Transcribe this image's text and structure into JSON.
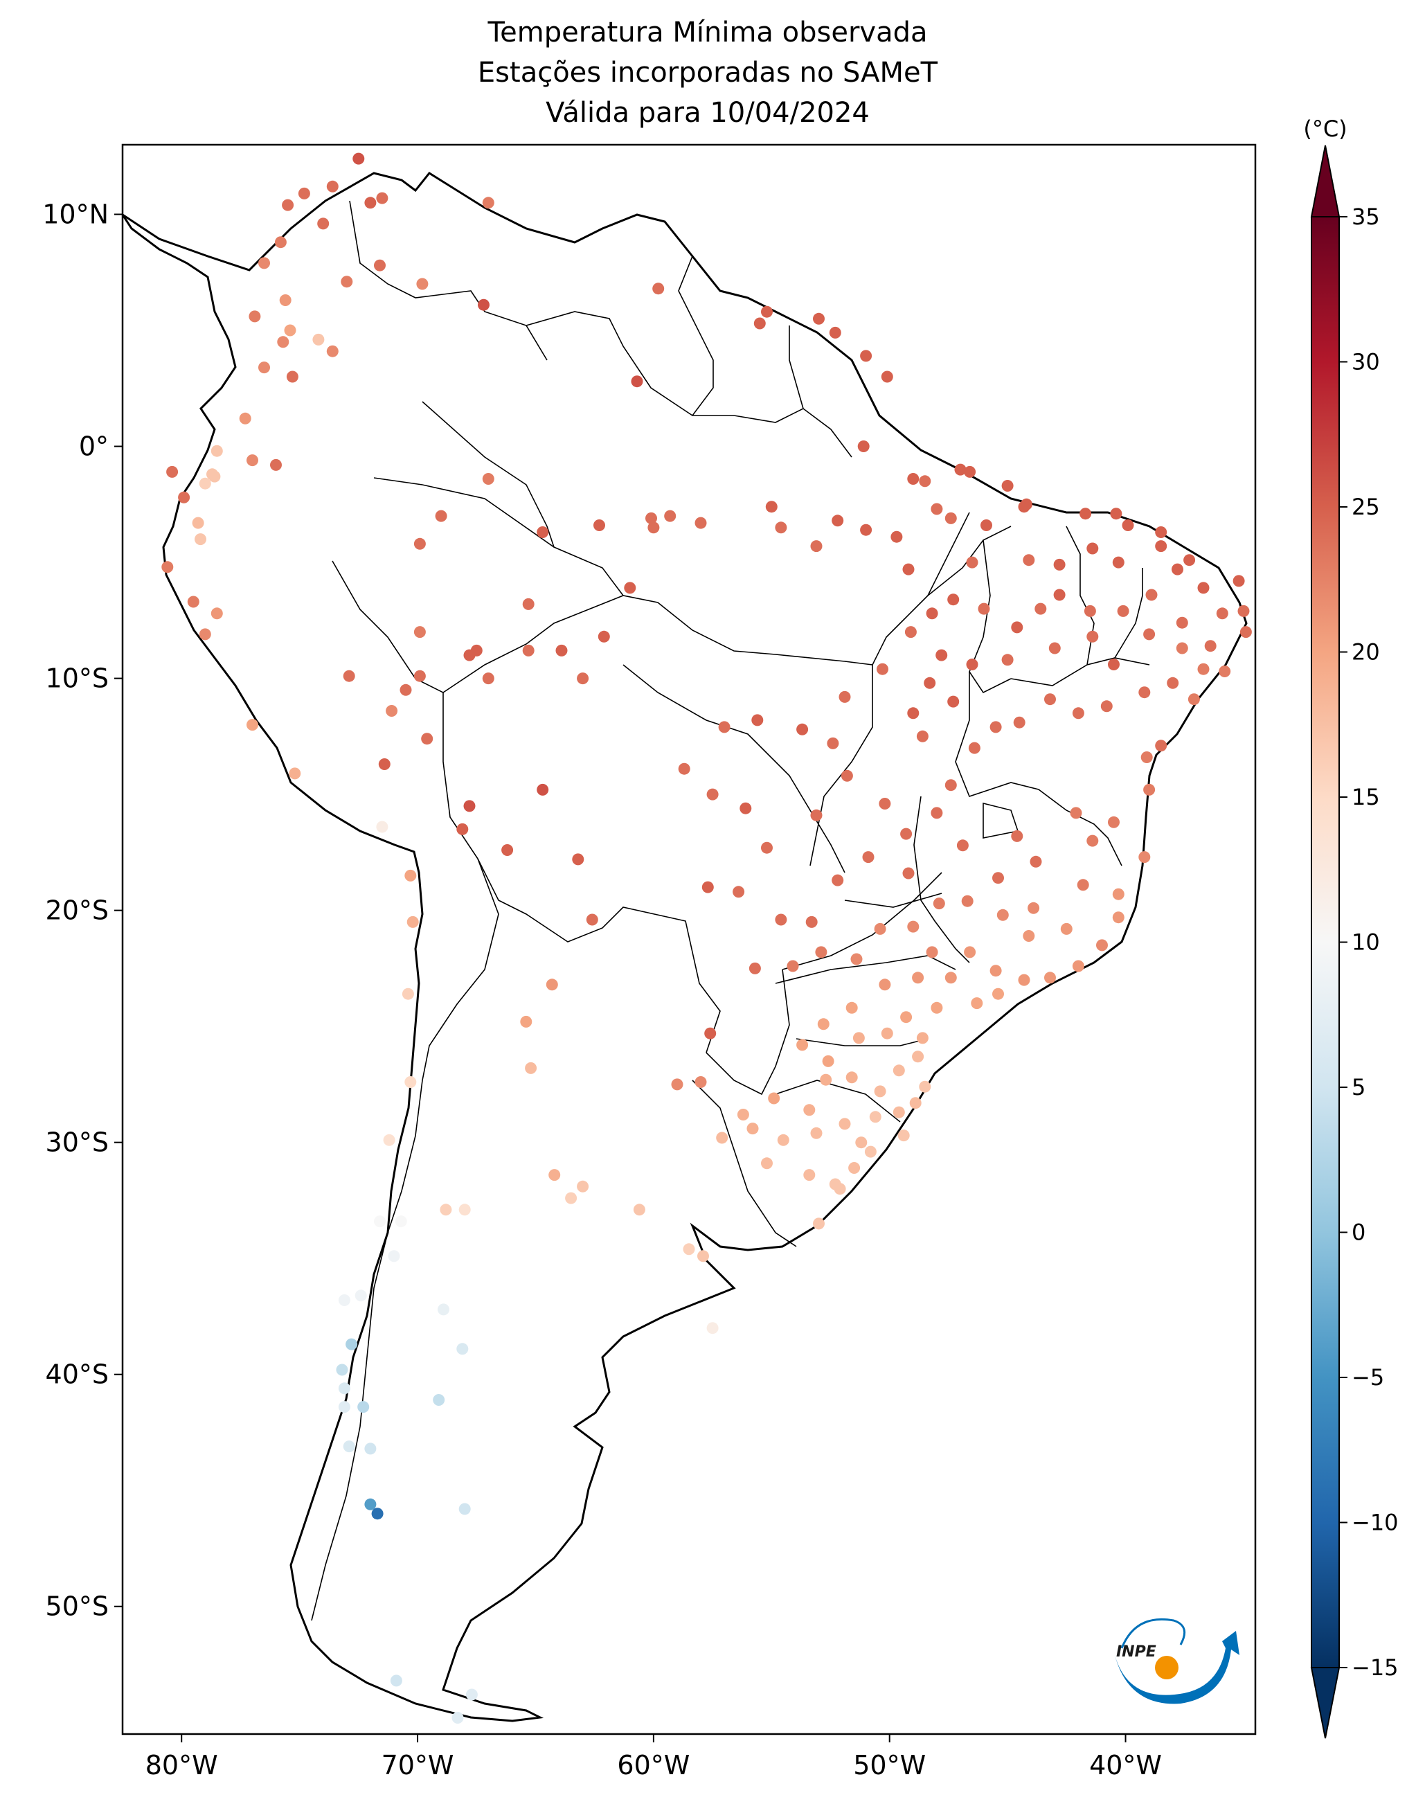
{
  "title": {
    "line1": "Temperatura Mínima observada",
    "line2": "Estações incorporadas no SAMeT",
    "line3": "Válida para 10/04/2024"
  },
  "map": {
    "region": "South America",
    "lon_range": [
      -82.5,
      -34.5
    ],
    "lat_range": [
      -55.5,
      13.0
    ],
    "lon_ticks": [
      {
        "value": -80,
        "label": "80°W"
      },
      {
        "value": -70,
        "label": "70°W"
      },
      {
        "value": -60,
        "label": "60°W"
      },
      {
        "value": -50,
        "label": "50°W"
      },
      {
        "value": -40,
        "label": "40°W"
      }
    ],
    "lat_ticks": [
      {
        "value": 10,
        "label": "10°N"
      },
      {
        "value": 0,
        "label": "0°"
      },
      {
        "value": -10,
        "label": "10°S"
      },
      {
        "value": -20,
        "label": "20°S"
      },
      {
        "value": -30,
        "label": "30°S"
      },
      {
        "value": -40,
        "label": "40°S"
      },
      {
        "value": -50,
        "label": "50°S"
      }
    ]
  },
  "colorbar": {
    "unit": "(°C)",
    "min": -15,
    "max": 35,
    "extend": "both",
    "colormap": "RdBu_r",
    "ticks": [
      {
        "value": 35,
        "label": "35"
      },
      {
        "value": 30,
        "label": "30"
      },
      {
        "value": 25,
        "label": "25"
      },
      {
        "value": 20,
        "label": "20"
      },
      {
        "value": 15,
        "label": "15"
      },
      {
        "value": 10,
        "label": "10"
      },
      {
        "value": 5,
        "label": "5"
      },
      {
        "value": 0,
        "label": "0"
      },
      {
        "value": -5,
        "label": "−5"
      },
      {
        "value": -10,
        "label": "−10"
      },
      {
        "value": -15,
        "label": "−15"
      }
    ]
  },
  "logo": {
    "text": "INPE"
  },
  "chart_data": {
    "type": "scatter",
    "title": "Temperatura Mínima observada / Estações incorporadas no SAMeT / Válida para 10/04/2024",
    "xlabel": "",
    "ylabel": "",
    "color_unit": "(°C)",
    "points": [
      [
        -72.5,
        12.4,
        26
      ],
      [
        -73.6,
        11.2,
        24
      ],
      [
        -74.8,
        10.9,
        24
      ],
      [
        -75.5,
        10.4,
        24
      ],
      [
        -72.0,
        10.5,
        25
      ],
      [
        -71.5,
        10.7,
        24
      ],
      [
        -67.0,
        10.5,
        23
      ],
      [
        -74.0,
        9.6,
        24
      ],
      [
        -75.8,
        8.8,
        23
      ],
      [
        -76.5,
        7.9,
        22
      ],
      [
        -73.0,
        7.1,
        23
      ],
      [
        -71.6,
        7.8,
        24
      ],
      [
        -69.8,
        7.0,
        22
      ],
      [
        -67.2,
        6.1,
        26
      ],
      [
        -75.6,
        6.3,
        21
      ],
      [
        -75.4,
        5.0,
        20
      ],
      [
        -76.9,
        5.6,
        23
      ],
      [
        -74.2,
        4.6,
        17
      ],
      [
        -73.6,
        4.1,
        22
      ],
      [
        -75.7,
        4.5,
        22
      ],
      [
        -75.3,
        3.0,
        24
      ],
      [
        -76.5,
        3.4,
        22
      ],
      [
        -77.3,
        1.2,
        21
      ],
      [
        -59.8,
        6.8,
        24
      ],
      [
        -55.2,
        5.8,
        25
      ],
      [
        -53.0,
        5.5,
        25
      ],
      [
        -52.3,
        4.9,
        25
      ],
      [
        -60.7,
        2.8,
        26
      ],
      [
        -55.5,
        5.3,
        25
      ],
      [
        -51.0,
        3.9,
        25
      ],
      [
        -50.1,
        3.0,
        25
      ],
      [
        -51.1,
        0.0,
        25
      ],
      [
        -49.0,
        -1.4,
        25
      ],
      [
        -48.5,
        -1.5,
        24
      ],
      [
        -47.0,
        -1.0,
        25
      ],
      [
        -45.0,
        -1.7,
        25
      ],
      [
        -44.2,
        -2.5,
        25
      ],
      [
        -44.3,
        -2.6,
        25
      ],
      [
        -41.7,
        -2.9,
        25
      ],
      [
        -40.4,
        -2.9,
        25
      ],
      [
        -39.9,
        -3.4,
        25
      ],
      [
        -38.5,
        -3.7,
        25
      ],
      [
        -37.3,
        -4.9,
        25
      ],
      [
        -35.2,
        -5.8,
        25
      ],
      [
        -35.0,
        -7.1,
        24
      ],
      [
        -34.9,
        -8.0,
        24
      ],
      [
        -35.8,
        -9.7,
        23
      ],
      [
        -37.1,
        -10.9,
        23
      ],
      [
        -38.5,
        -12.9,
        24
      ],
      [
        -39.1,
        -13.4,
        23
      ],
      [
        -39.0,
        -14.8,
        23
      ],
      [
        -39.2,
        -17.7,
        22
      ],
      [
        -40.3,
        -19.3,
        21
      ],
      [
        -40.3,
        -20.3,
        21
      ],
      [
        -41.0,
        -21.5,
        22
      ],
      [
        -43.2,
        -22.9,
        21
      ],
      [
        -44.3,
        -23.0,
        21
      ],
      [
        -45.4,
        -23.6,
        20
      ],
      [
        -46.3,
        -24.0,
        20
      ],
      [
        -48.6,
        -25.5,
        19
      ],
      [
        -48.8,
        -26.3,
        18
      ],
      [
        -48.5,
        -27.6,
        17
      ],
      [
        -49.6,
        -28.7,
        18
      ],
      [
        -51.2,
        -30.0,
        18
      ],
      [
        -52.3,
        -31.8,
        17
      ],
      [
        -53.0,
        -33.5,
        17
      ],
      [
        -78.5,
        -0.2,
        17
      ],
      [
        -79.9,
        -2.2,
        24
      ],
      [
        -80.4,
        -1.1,
        24
      ],
      [
        -78.6,
        -1.3,
        17
      ],
      [
        -79.0,
        -1.6,
        16
      ],
      [
        -78.7,
        -1.2,
        17
      ],
      [
        -77.0,
        -0.6,
        22
      ],
      [
        -76.0,
        -0.8,
        24
      ],
      [
        -79.3,
        -3.3,
        18
      ],
      [
        -79.2,
        -4.0,
        17
      ],
      [
        -80.6,
        -5.2,
        23
      ],
      [
        -79.5,
        -6.7,
        23
      ],
      [
        -78.5,
        -7.2,
        21
      ],
      [
        -79.0,
        -8.1,
        22
      ],
      [
        -77.0,
        -12.0,
        20
      ],
      [
        -75.2,
        -14.1,
        19
      ],
      [
        -71.5,
        -16.4,
        12
      ],
      [
        -70.3,
        -18.5,
        20
      ],
      [
        -70.2,
        -20.5,
        19
      ],
      [
        -70.4,
        -23.6,
        16
      ],
      [
        -70.3,
        -27.4,
        15
      ],
      [
        -71.2,
        -29.9,
        14
      ],
      [
        -71.6,
        -33.4,
        10
      ],
      [
        -70.7,
        -33.4,
        10
      ],
      [
        -71.0,
        -34.9,
        9
      ],
      [
        -72.4,
        -36.6,
        9
      ],
      [
        -73.1,
        -36.8,
        9
      ],
      [
        -72.8,
        -38.7,
        2
      ],
      [
        -73.2,
        -39.8,
        4
      ],
      [
        -73.1,
        -40.6,
        6
      ],
      [
        -73.1,
        -41.4,
        7
      ],
      [
        -72.9,
        -43.1,
        6
      ],
      [
        -72.0,
        -43.2,
        5
      ],
      [
        -72.0,
        -45.6,
        -4
      ],
      [
        -71.7,
        -46.0,
        -9
      ],
      [
        -68.0,
        -45.8,
        5
      ],
      [
        -70.9,
        -53.2,
        5
      ],
      [
        -68.3,
        -54.8,
        7
      ],
      [
        -67.7,
        -53.8,
        7
      ],
      [
        -68.9,
        -37.2,
        8
      ],
      [
        -68.1,
        -38.9,
        6
      ],
      [
        -69.1,
        -41.1,
        4
      ],
      [
        -72.3,
        -41.4,
        3
      ],
      [
        -68.0,
        -32.9,
        14
      ],
      [
        -68.8,
        -32.9,
        16
      ],
      [
        -65.4,
        -24.8,
        20
      ],
      [
        -65.2,
        -26.8,
        18
      ],
      [
        -64.3,
        -23.2,
        21
      ],
      [
        -64.2,
        -31.4,
        19
      ],
      [
        -63.0,
        -31.9,
        17
      ],
      [
        -63.5,
        -32.4,
        16
      ],
      [
        -60.6,
        -32.9,
        17
      ],
      [
        -58.5,
        -34.6,
        16
      ],
      [
        -57.9,
        -34.9,
        17
      ],
      [
        -57.5,
        -38.0,
        12
      ],
      [
        -59.0,
        -27.5,
        22
      ],
      [
        -58.0,
        -27.4,
        22
      ],
      [
        -57.6,
        -25.3,
        25
      ],
      [
        -68.1,
        -16.5,
        25
      ],
      [
        -67.8,
        -15.5,
        26
      ],
      [
        -66.2,
        -17.4,
        25
      ],
      [
        -64.7,
        -14.8,
        26
      ],
      [
        -63.2,
        -17.8,
        25
      ],
      [
        -62.6,
        -20.4,
        24
      ],
      [
        -70.5,
        -10.5,
        24
      ],
      [
        -69.9,
        -9.9,
        24
      ],
      [
        -71.1,
        -11.4,
        22
      ],
      [
        -72.9,
        -9.9,
        24
      ],
      [
        -67.8,
        -9.0,
        25
      ],
      [
        -67.0,
        -10.0,
        24
      ],
      [
        -67.5,
        -8.8,
        25
      ],
      [
        -69.9,
        -8.0,
        23
      ],
      [
        -71.4,
        -13.7,
        25
      ],
      [
        -69.6,
        -12.6,
        24
      ],
      [
        -65.3,
        -8.8,
        24
      ],
      [
        -63.9,
        -8.8,
        25
      ],
      [
        -62.1,
        -8.2,
        25
      ],
      [
        -63.0,
        -10.0,
        24
      ],
      [
        -60.1,
        -3.1,
        24
      ],
      [
        -60.0,
        -3.5,
        24
      ],
      [
        -62.3,
        -3.4,
        25
      ],
      [
        -64.7,
        -3.7,
        25
      ],
      [
        -65.3,
        -6.8,
        24
      ],
      [
        -67.0,
        -1.4,
        23
      ],
      [
        -69.0,
        -3.0,
        24
      ],
      [
        -69.9,
        -4.2,
        24
      ],
      [
        -61.0,
        -6.1,
        25
      ],
      [
        -59.3,
        -3.0,
        24
      ],
      [
        -58.0,
        -3.3,
        24
      ],
      [
        -55.0,
        -2.6,
        25
      ],
      [
        -54.6,
        -3.5,
        24
      ],
      [
        -53.1,
        -4.3,
        24
      ],
      [
        -52.2,
        -3.2,
        25
      ],
      [
        -51.0,
        -3.6,
        25
      ],
      [
        -49.7,
        -3.9,
        25
      ],
      [
        -49.2,
        -5.3,
        25
      ],
      [
        -48.0,
        -2.7,
        24
      ],
      [
        -47.4,
        -3.1,
        24
      ],
      [
        -46.6,
        -1.1,
        25
      ],
      [
        -45.9,
        -3.4,
        25
      ],
      [
        -46.5,
        -5.0,
        24
      ],
      [
        -44.1,
        -4.9,
        24
      ],
      [
        -42.8,
        -5.1,
        25
      ],
      [
        -41.4,
        -4.4,
        25
      ],
      [
        -40.3,
        -5.0,
        25
      ],
      [
        -38.5,
        -4.3,
        25
      ],
      [
        -37.8,
        -5.3,
        25
      ],
      [
        -36.7,
        -6.1,
        25
      ],
      [
        -35.9,
        -7.2,
        24
      ],
      [
        -37.6,
        -7.6,
        24
      ],
      [
        -38.9,
        -6.4,
        24
      ],
      [
        -40.1,
        -7.1,
        24
      ],
      [
        -41.5,
        -7.1,
        24
      ],
      [
        -42.8,
        -6.4,
        25
      ],
      [
        -43.6,
        -7.0,
        24
      ],
      [
        -44.6,
        -7.8,
        25
      ],
      [
        -46.0,
        -7.0,
        24
      ],
      [
        -47.3,
        -6.6,
        25
      ],
      [
        -48.2,
        -7.2,
        25
      ],
      [
        -49.1,
        -8.0,
        24
      ],
      [
        -47.8,
        -9.0,
        25
      ],
      [
        -46.5,
        -9.4,
        25
      ],
      [
        -45.0,
        -9.2,
        24
      ],
      [
        -43.0,
        -8.7,
        24
      ],
      [
        -41.4,
        -8.2,
        24
      ],
      [
        -40.5,
        -9.4,
        25
      ],
      [
        -39.0,
        -8.1,
        24
      ],
      [
        -37.6,
        -8.7,
        23
      ],
      [
        -36.4,
        -8.6,
        24
      ],
      [
        -36.7,
        -9.6,
        23
      ],
      [
        -38.0,
        -10.2,
        24
      ],
      [
        -39.2,
        -10.6,
        24
      ],
      [
        -40.8,
        -11.2,
        24
      ],
      [
        -42.0,
        -11.5,
        24
      ],
      [
        -43.2,
        -10.9,
        24
      ],
      [
        -44.5,
        -11.9,
        24
      ],
      [
        -45.5,
        -12.1,
        24
      ],
      [
        -46.4,
        -13.0,
        24
      ],
      [
        -48.3,
        -10.2,
        25
      ],
      [
        -49.0,
        -11.5,
        25
      ],
      [
        -48.6,
        -12.5,
        24
      ],
      [
        -47.3,
        -11.0,
        25
      ],
      [
        -50.3,
        -9.6,
        24
      ],
      [
        -51.9,
        -10.8,
        24
      ],
      [
        -52.4,
        -12.8,
        24
      ],
      [
        -53.7,
        -12.2,
        25
      ],
      [
        -55.6,
        -11.8,
        25
      ],
      [
        -57.0,
        -12.1,
        24
      ],
      [
        -58.7,
        -13.9,
        24
      ],
      [
        -57.5,
        -15.0,
        24
      ],
      [
        -56.1,
        -15.6,
        25
      ],
      [
        -55.2,
        -17.3,
        24
      ],
      [
        -53.1,
        -15.9,
        24
      ],
      [
        -51.8,
        -14.2,
        24
      ],
      [
        -50.2,
        -15.4,
        24
      ],
      [
        -49.3,
        -16.7,
        24
      ],
      [
        -48.0,
        -15.8,
        24
      ],
      [
        -47.4,
        -14.6,
        24
      ],
      [
        -46.9,
        -17.2,
        24
      ],
      [
        -45.4,
        -18.6,
        24
      ],
      [
        -44.6,
        -16.8,
        24
      ],
      [
        -43.8,
        -17.9,
        24
      ],
      [
        -42.1,
        -15.8,
        23
      ],
      [
        -41.4,
        -17.0,
        23
      ],
      [
        -40.5,
        -16.2,
        23
      ],
      [
        -41.8,
        -18.9,
        23
      ],
      [
        -43.9,
        -19.9,
        22
      ],
      [
        -45.2,
        -20.2,
        22
      ],
      [
        -46.7,
        -19.6,
        23
      ],
      [
        -47.9,
        -19.7,
        23
      ],
      [
        -49.2,
        -18.4,
        24
      ],
      [
        -50.9,
        -17.7,
        24
      ],
      [
        -52.2,
        -18.7,
        24
      ],
      [
        -53.3,
        -20.5,
        24
      ],
      [
        -54.6,
        -20.4,
        24
      ],
      [
        -56.4,
        -19.2,
        24
      ],
      [
        -57.7,
        -19.0,
        25
      ],
      [
        -55.7,
        -22.5,
        24
      ],
      [
        -54.1,
        -22.4,
        23
      ],
      [
        -52.9,
        -21.8,
        23
      ],
      [
        -51.4,
        -22.1,
        22
      ],
      [
        -50.4,
        -20.8,
        22
      ],
      [
        -49.0,
        -20.7,
        22
      ],
      [
        -48.2,
        -21.8,
        22
      ],
      [
        -47.4,
        -22.9,
        21
      ],
      [
        -46.6,
        -21.8,
        21
      ],
      [
        -45.5,
        -22.6,
        21
      ],
      [
        -44.1,
        -21.1,
        21
      ],
      [
        -42.5,
        -20.8,
        21
      ],
      [
        -42.0,
        -22.4,
        21
      ],
      [
        -48.8,
        -22.9,
        21
      ],
      [
        -50.2,
        -23.2,
        21
      ],
      [
        -51.6,
        -24.2,
        20
      ],
      [
        -52.8,
        -24.9,
        20
      ],
      [
        -53.7,
        -25.8,
        20
      ],
      [
        -52.6,
        -26.5,
        20
      ],
      [
        -51.3,
        -25.5,
        19
      ],
      [
        -50.1,
        -25.3,
        19
      ],
      [
        -49.3,
        -24.6,
        20
      ],
      [
        -48.0,
        -24.2,
        20
      ],
      [
        -49.6,
        -26.9,
        18
      ],
      [
        -50.4,
        -27.8,
        18
      ],
      [
        -51.6,
        -27.2,
        19
      ],
      [
        -52.7,
        -27.3,
        19
      ],
      [
        -53.4,
        -28.6,
        19
      ],
      [
        -54.9,
        -28.1,
        20
      ],
      [
        -55.8,
        -29.4,
        19
      ],
      [
        -54.5,
        -29.9,
        18
      ],
      [
        -53.1,
        -29.6,
        18
      ],
      [
        -51.9,
        -29.2,
        18
      ],
      [
        -50.6,
        -28.9,
        17
      ],
      [
        -51.5,
        -31.1,
        18
      ],
      [
        -53.4,
        -31.4,
        18
      ],
      [
        -55.2,
        -30.9,
        18
      ],
      [
        -56.2,
        -28.8,
        19
      ],
      [
        -57.1,
        -29.8,
        18
      ],
      [
        -52.1,
        -32.0,
        17
      ],
      [
        -50.8,
        -30.4,
        17
      ],
      [
        -48.9,
        -28.3,
        18
      ],
      [
        -49.4,
        -29.7,
        17
      ]
    ]
  }
}
